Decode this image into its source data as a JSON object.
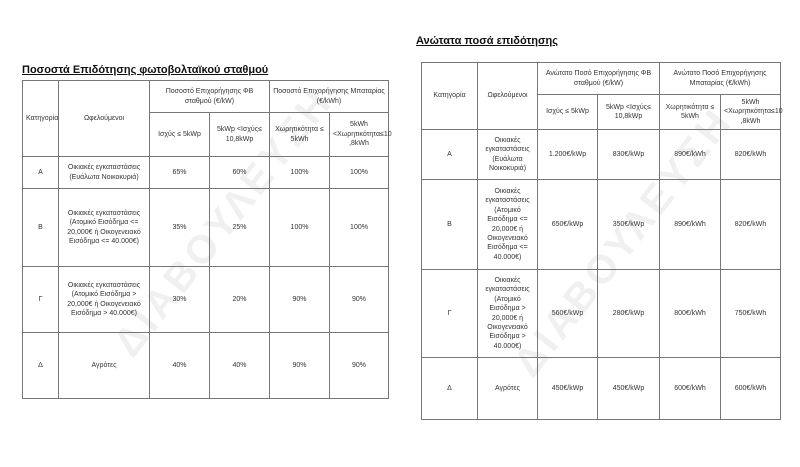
{
  "left": {
    "title": "Ποσοστά Επιδότησης φωτοβολταϊκού σταθμού",
    "headers": {
      "category": "Κατηγορία",
      "beneficiaries": "Ωφελούμενοι",
      "pv_group": "Ποσοστό Επιχορήγησης ΦΒ σταθμού (€/kW)",
      "battery_group": "Ποσοστό Επιχορήγησης Μπαταρίας (€/kWh)",
      "pv_low": "Ισχύς ≤ 5kWp",
      "pv_high": "5kWp <Ισχύς≤ 10,8kWp",
      "bat_low": "Χωρητικότητα ≤ 5kWh",
      "bat_high": "5kWh <Χωρητικότητα≤10 ,8kWh"
    },
    "rows": [
      {
        "cat": "Α",
        "desc": "Οικιακές εγκαταστάσεις (Ευάλωτα Νοικοκυριά)",
        "v1": "65%",
        "v2": "60%",
        "v3": "100%",
        "v4": "100%"
      },
      {
        "cat": "Β",
        "desc": "Οικιακές εγκαταστάσεις (Ατομικό Εισόδημα <= 20,000€ ή Οικογενειακό Εισόδημα <= 40.000€)",
        "v1": "35%",
        "v2": "25%",
        "v3": "100%",
        "v4": "100%"
      },
      {
        "cat": "Γ",
        "desc": "Οικιακές εγκαταστάσεις (Ατομικό Εισόδημα > 20,000€ ή Οικογενειακό Εισόδημα > 40.000€)",
        "v1": "30%",
        "v2": "20%",
        "v3": "90%",
        "v4": "90%"
      },
      {
        "cat": "Δ",
        "desc": "Αγρότες",
        "v1": "40%",
        "v2": "40%",
        "v3": "90%",
        "v4": "90%"
      }
    ]
  },
  "right": {
    "title": "Ανώτατα ποσά επιδότησης",
    "headers": {
      "category": "Κατηγορία",
      "beneficiaries": "Ωφελούμενοι",
      "pv_group": "Ανώτατο Ποσό Επιχορήγησης ΦΒ σταθμού (€/kW)",
      "battery_group": "Ανώτατο Ποσό Επιχορήγησης Μπαταρίας (€/kWh)",
      "pv_low": "Ισχύς ≤ 5kWp",
      "pv_high": "5kWp <Ισχύς≤ 10,8kWp",
      "bat_low": "Χωρητικότητα ≤ 5kWh",
      "bat_high": "5kWh <Χωρητικότητα≤10 ,8kWh"
    },
    "rows": [
      {
        "cat": "Α",
        "desc": "Οικιακές εγκαταστάσεις (Ευάλωτα Νοικοκυριά)",
        "v1": "1.200€/kWp",
        "v2": "830€/kWp",
        "v3": "890€/kWh",
        "v4": "820€/kWh"
      },
      {
        "cat": "Β",
        "desc": "Οικιακές εγκαταστάσεις (Ατομικό Εισόδημα <= 20,000€ ή Οικογενειακό Εισόδημα <= 40.000€)",
        "v1": "650€/kWp",
        "v2": "350€/kWp",
        "v3": "890€/kWh",
        "v4": "820€/kWh"
      },
      {
        "cat": "Γ",
        "desc": "Οικιακές εγκαταστάσεις (Ατομικό Εισόδημα > 20,000€ ή Οικογενειακό Εισόδημα > 40.000€)",
        "v1": "560€/kWp",
        "v2": "280€/kWp",
        "v3": "800€/kWh",
        "v4": "750€/kWh"
      },
      {
        "cat": "Δ",
        "desc": "Αγρότες",
        "v1": "450€/kWp",
        "v2": "450€/kWp",
        "v3": "600€/kWh",
        "v4": "600€/kWh"
      }
    ]
  },
  "watermark": "ΔΙΑΒΟΥΛΕΥΣΗ"
}
